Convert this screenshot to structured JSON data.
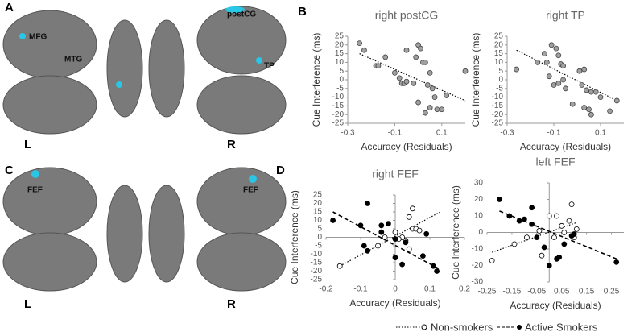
{
  "brain_panels": [
    {
      "letter": "A",
      "labels": [
        "MFG",
        "MTG",
        "postCG",
        "TP"
      ],
      "left": "L",
      "right": "R"
    },
    {
      "letter": "C",
      "labels": [
        "FEF",
        "FEF"
      ],
      "left": "L",
      "right": "R"
    }
  ],
  "chart_data": [
    {
      "type": "scatter",
      "panel": "B",
      "title": "right postCG",
      "x_label": "Accuracy (Residuals)",
      "y_label": "Cue Interference (ms)",
      "xlim": [
        -0.3,
        0.2
      ],
      "xticks": [
        -0.3,
        -0.1,
        0.1
      ],
      "ylim": [
        -25,
        25
      ],
      "yticks": [
        -25,
        -20,
        -15,
        -10,
        -5,
        0,
        5,
        10,
        15,
        20,
        25
      ],
      "series": [
        {
          "marker": "gray",
          "color": "#a0a0a0",
          "x": [
            -0.25,
            -0.23,
            -0.18,
            -0.17,
            -0.14,
            -0.1,
            -0.08,
            -0.07,
            -0.06,
            -0.05,
            -0.02,
            -0.05,
            0,
            0.01,
            -0.01,
            0.02,
            0.03,
            0.05,
            0.04,
            0.06,
            0.07,
            0.05,
            0.08,
            0.1,
            0.03,
            0,
            0.2,
            0.12
          ],
          "values": [
            21,
            17,
            8,
            8,
            13,
            4,
            1,
            -2,
            -2,
            -1,
            -2,
            17,
            20,
            18,
            13,
            10,
            10,
            4,
            -3,
            -5,
            -10,
            -16,
            -17,
            -17,
            -19,
            -13,
            5,
            -9
          ],
          "trend_x": [
            -0.25,
            0.2
          ],
          "trend_y": [
            15,
            -12
          ],
          "trend_style": "dotted"
        }
      ]
    },
    {
      "type": "scatter",
      "panel": "",
      "title": "right TP",
      "x_label": "Accuracy (Residuals)",
      "y_label": "Cue Interference (ms)",
      "xlim": [
        -0.3,
        0.2
      ],
      "xticks": [
        -0.3,
        -0.1,
        0.1
      ],
      "ylim": [
        -25,
        25
      ],
      "yticks": [
        -25,
        -20,
        -15,
        -10,
        -5,
        0,
        5,
        10,
        15,
        20,
        25
      ],
      "series": [
        {
          "marker": "gray",
          "color": "#a0a0a0",
          "x": [
            -0.26,
            -0.17,
            -0.14,
            -0.13,
            -0.11,
            -0.09,
            -0.08,
            -0.12,
            -0.1,
            -0.08,
            -0.06,
            -0.05,
            -0.07,
            -0.06,
            -0.02,
            0.01,
            0.03,
            0.02,
            0.04,
            0.06,
            0.08,
            0.03,
            0.05,
            0.06,
            0.1,
            0.14,
            0.17
          ],
          "values": [
            6,
            10,
            15,
            10,
            20,
            18,
            14,
            2,
            -3,
            -2,
            0,
            -5,
            9,
            8,
            -14,
            5,
            6,
            -3,
            -6,
            -7,
            -7,
            -16,
            -17,
            -20,
            -10,
            -18,
            -12
          ],
          "trend_x": [
            -0.26,
            0.17
          ],
          "trend_y": [
            17,
            -12
          ],
          "trend_style": "dotted"
        }
      ]
    },
    {
      "type": "scatter",
      "panel": "D",
      "title": "right FEF",
      "x_label": "Accuracy (Residuals)",
      "y_label": "Cue Interference (ms)",
      "zero_axes": true,
      "xlim": [
        -0.2,
        0.2
      ],
      "xticks": [
        -0.2,
        -0.1,
        0,
        0.1,
        0.2
      ],
      "ylim": [
        -25,
        25
      ],
      "yticks": [
        -25,
        -20,
        -15,
        -10,
        -5,
        0,
        5,
        10,
        15,
        20,
        25
      ],
      "series": [
        {
          "name": "Non-smokers",
          "marker": "open",
          "color": "#000000",
          "x": [
            -0.16,
            -0.05,
            -0.03,
            0,
            0.02,
            0.03,
            0.05,
            0.06,
            0.07,
            0.05,
            0.04,
            0.01,
            0.04
          ],
          "values": [
            -17,
            -5,
            0,
            3,
            0,
            -2,
            5,
            5,
            4,
            17,
            12,
            -1,
            -7
          ],
          "trend_x": [
            -0.16,
            0.13
          ],
          "trend_y": [
            -17,
            15
          ],
          "trend_style": "dotted"
        },
        {
          "name": "Active Smokers",
          "marker": "filled",
          "color": "#000000",
          "x": [
            -0.18,
            -0.1,
            -0.09,
            -0.08,
            -0.08,
            -0.04,
            -0.04,
            -0.02,
            0,
            0,
            0.02,
            0.03,
            0.08,
            0.11,
            0.12,
            0.09
          ],
          "values": [
            10,
            7,
            -5,
            -8,
            20,
            7,
            3,
            8,
            -1,
            -12,
            -16,
            -3,
            -11,
            -17,
            -20,
            2
          ],
          "trend_x": [
            -0.18,
            0.13
          ],
          "trend_y": [
            15,
            -19
          ],
          "trend_style": "dashed"
        }
      ]
    },
    {
      "type": "scatter",
      "panel": "",
      "title": "left FEF",
      "x_label": "Accuracy (Residuals)",
      "y_label": "Cue Interference (ms)",
      "zero_axes": true,
      "xlim": [
        -0.25,
        0.3
      ],
      "xticks": [
        -0.25,
        -0.15,
        -0.05,
        0.05,
        0.15,
        0.25
      ],
      "ylim": [
        -30,
        30
      ],
      "yticks": [
        -30,
        -20,
        -10,
        0,
        10,
        20,
        30
      ],
      "series": [
        {
          "name": "Non-smokers",
          "marker": "open",
          "color": "#000000",
          "x": [
            -0.23,
            -0.14,
            -0.09,
            -0.04,
            -0.03,
            0,
            0.02,
            0.03,
            0.05,
            0.06,
            0.08,
            0.09,
            0.1,
            0.11
          ],
          "values": [
            -17,
            -7,
            -3,
            1,
            -14,
            10,
            -3,
            10,
            4,
            0,
            7,
            17,
            -3,
            2
          ],
          "trend_x": [
            -0.23,
            0.11
          ],
          "trend_y": [
            -12,
            6
          ],
          "trend_style": "dotted"
        },
        {
          "name": "Active Smokers",
          "marker": "filled",
          "color": "#000000",
          "x": [
            -0.2,
            -0.16,
            -0.12,
            -0.1,
            -0.07,
            -0.07,
            -0.05,
            -0.02,
            0.03,
            0.06,
            0.09,
            0.04,
            0.1,
            0.27,
            0
          ],
          "values": [
            20,
            10,
            7,
            8,
            15,
            5,
            -3,
            -9,
            -16,
            -7,
            -2,
            -15,
            -1,
            -18,
            -20
          ],
          "trend_x": [
            -0.2,
            0.27
          ],
          "trend_y": [
            13,
            -16
          ],
          "trend_style": "dashed"
        }
      ]
    }
  ]
}
